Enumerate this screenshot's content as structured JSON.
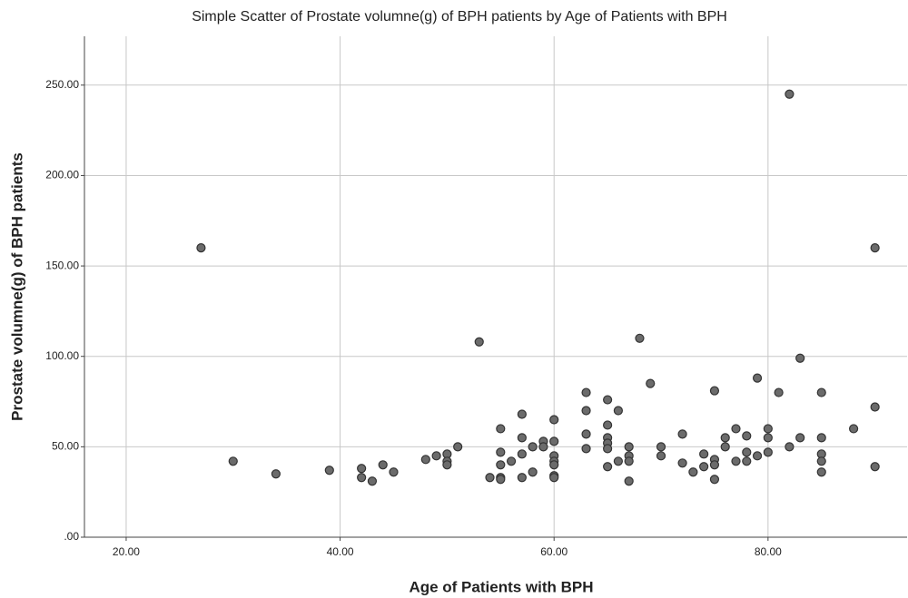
{
  "chart_data": {
    "type": "scatter",
    "title": "Simple Scatter of Prostate volumne(g) of BPH patients by Age of Patients with BPH",
    "x_label": "Age of Patients with BPH",
    "y_label": "Prostate volumne(g) of BPH patients",
    "color": "#6b6b6b",
    "grid": true,
    "xlim": [
      16.1,
      93
    ],
    "ylim": [
      0,
      277
    ],
    "xticks": [
      {
        "value": 20,
        "label": "20.00"
      },
      {
        "value": 40,
        "label": "40.00"
      },
      {
        "value": 60,
        "label": "60.00"
      },
      {
        "value": 80,
        "label": "80.00"
      }
    ],
    "yticks": [
      {
        "value": 0,
        "label": ".00"
      },
      {
        "value": 50,
        "label": "50.00"
      },
      {
        "value": 100,
        "label": "100.00"
      },
      {
        "value": 150,
        "label": "150.00"
      },
      {
        "value": 200,
        "label": "200.00"
      },
      {
        "value": 250,
        "label": "250.00"
      }
    ],
    "x": [
      27,
      30,
      34,
      39,
      42,
      42,
      43,
      44,
      45,
      48,
      49,
      50,
      50,
      50,
      51,
      53,
      54,
      55,
      55,
      55,
      55,
      55,
      56,
      57,
      57,
      57,
      57,
      58,
      58,
      59,
      59,
      60,
      60,
      60,
      60,
      60,
      60,
      60,
      63,
      63,
      63,
      63,
      65,
      65,
      65,
      65,
      65,
      65,
      66,
      66,
      67,
      67,
      67,
      67,
      68,
      69,
      70,
      70,
      72,
      72,
      73,
      74,
      74,
      75,
      75,
      75,
      75,
      76,
      76,
      77,
      77,
      78,
      78,
      78,
      79,
      79,
      80,
      80,
      80,
      81,
      82,
      82,
      83,
      83,
      85,
      85,
      85,
      85,
      85,
      88,
      90,
      90,
      90
    ],
    "values": [
      160,
      42,
      35,
      37,
      38,
      33,
      31,
      40,
      36,
      43,
      45,
      46,
      42,
      40,
      50,
      108,
      33,
      60,
      47,
      40,
      33,
      32,
      42,
      68,
      55,
      46,
      33,
      50,
      36,
      53,
      50,
      65,
      53,
      45,
      42,
      40,
      34,
      33,
      80,
      70,
      57,
      49,
      76,
      62,
      55,
      52,
      49,
      39,
      70,
      42,
      50,
      45,
      42,
      31,
      110,
      85,
      50,
      45,
      57,
      41,
      36,
      46,
      39,
      81,
      43,
      40,
      32,
      55,
      50,
      60,
      42,
      56,
      47,
      42,
      88,
      45,
      60,
      55,
      47,
      80,
      245,
      50,
      99,
      55,
      80,
      55,
      46,
      42,
      36,
      60,
      160,
      72,
      39
    ]
  }
}
